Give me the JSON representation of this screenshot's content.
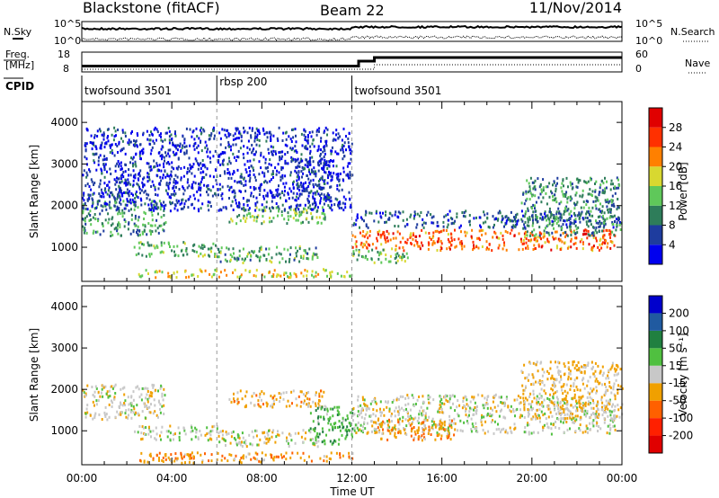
{
  "header": {
    "station": "Blackstone (fitACF)",
    "beam": "Beam 22",
    "date": "11/Nov/2014"
  },
  "top_panel": {
    "nsky_label": "N.Sky",
    "nsearch_label": "N.Search",
    "freq_label_1": "Freq.",
    "freq_label_2": "[MHz]",
    "nave_label": "Nave",
    "cpid_label": "CPID",
    "noise_ticks": [
      "10^5",
      "10^0"
    ],
    "freq_ticks": [
      "18",
      "8"
    ],
    "nave_ticks": [
      "60",
      "0"
    ],
    "cpid_segments": [
      {
        "label": "twofsound 3501",
        "start_hour": 0,
        "end_hour": 6
      },
      {
        "label": "rbsp 200",
        "start_hour": 6,
        "end_hour": 12
      },
      {
        "label": "twofsound 3501",
        "start_hour": 12,
        "end_hour": 24
      }
    ]
  },
  "chart_data": [
    {
      "type": "heatmap",
      "title": "",
      "xlabel": "Time UT",
      "ylabel": "Slant Range [km]",
      "xlim": [
        0,
        24
      ],
      "ylim": [
        180,
        4500
      ],
      "x_tick_labels": [
        "00:00",
        "04:00",
        "08:00",
        "12:00",
        "16:00",
        "20:00",
        "00:00"
      ],
      "x_ticks": [
        0,
        4,
        8,
        12,
        16,
        20,
        24
      ],
      "y_ticks": [
        1000,
        2000,
        3000,
        4000
      ],
      "colorbar": {
        "label": "Power [dB]",
        "ticks": [
          4,
          8,
          12,
          16,
          20,
          24,
          28
        ],
        "range": [
          0,
          32
        ],
        "colors": [
          "#0000ee",
          "#1e3c9e",
          "#2e7d5a",
          "#5fc85a",
          "#d8d830",
          "#ff8000",
          "#ff3000",
          "#e00000"
        ]
      },
      "regions": [
        {
          "t0": 0.0,
          "t1": 3.7,
          "r0": 1300,
          "r1": 2150,
          "level": 11
        },
        {
          "t0": 1.0,
          "t1": 2.5,
          "r0": 2200,
          "r1": 2550,
          "level": 6
        },
        {
          "t0": 2.3,
          "t1": 6.0,
          "r0": 800,
          "r1": 1150,
          "level": 13
        },
        {
          "t0": 2.5,
          "t1": 12.0,
          "r0": 300,
          "r1": 500,
          "level": 18
        },
        {
          "t0": 6.0,
          "t1": 10.5,
          "r0": 650,
          "r1": 1050,
          "level": 12
        },
        {
          "t0": 6.5,
          "t1": 10.8,
          "r0": 1600,
          "r1": 2000,
          "level": 14
        },
        {
          "t0": 9.5,
          "t1": 11.0,
          "r0": 1900,
          "r1": 3200,
          "level": 5
        },
        {
          "t0": 12.0,
          "t1": 23.7,
          "r0": 950,
          "r1": 1450,
          "level": 24
        },
        {
          "t0": 12.0,
          "t1": 23.9,
          "r0": 1500,
          "r1": 1900,
          "level": 7
        },
        {
          "t0": 12.0,
          "t1": 14.5,
          "r0": 650,
          "r1": 1000,
          "level": 14
        },
        {
          "t0": 19.5,
          "t1": 24.0,
          "r0": 1300,
          "r1": 2700,
          "level": 10
        },
        {
          "t0": 0.0,
          "t1": 12.0,
          "r0": 1900,
          "r1": 3900,
          "level": 4
        }
      ]
    },
    {
      "type": "heatmap",
      "title": "",
      "xlabel": "Time UT",
      "ylabel": "Slant Range [km]",
      "xlim": [
        0,
        24
      ],
      "ylim": [
        180,
        4500
      ],
      "x_tick_labels": [
        "00:00",
        "04:00",
        "08:00",
        "12:00",
        "16:00",
        "20:00",
        "00:00"
      ],
      "x_ticks": [
        0,
        4,
        8,
        12,
        16,
        20,
        24
      ],
      "y_ticks": [
        1000,
        2000,
        3000,
        4000
      ],
      "colorbar": {
        "label": "Velocity [m s⁻¹]",
        "unit_superscript": "-1",
        "ticks": [
          200,
          100,
          50,
          15,
          -15,
          -50,
          -100,
          -200
        ],
        "colors": [
          "#0000cc",
          "#205aa0",
          "#208040",
          "#50c040",
          "#c8c8c8",
          "#f0a000",
          "#ff6000",
          "#ff2000",
          "#e00000"
        ]
      },
      "regions": [
        {
          "t0": 0.0,
          "t1": 3.7,
          "r0": 1300,
          "r1": 2150,
          "value": 0
        },
        {
          "t0": 2.3,
          "t1": 6.0,
          "r0": 800,
          "r1": 1150,
          "value": 0
        },
        {
          "t0": 2.5,
          "t1": 12.0,
          "r0": 250,
          "r1": 500,
          "value": -40
        },
        {
          "t0": 6.0,
          "t1": 10.5,
          "r0": 650,
          "r1": 1050,
          "value": 0
        },
        {
          "t0": 6.5,
          "t1": 10.8,
          "r0": 1600,
          "r1": 2000,
          "value": -30
        },
        {
          "t0": 10.0,
          "t1": 12.0,
          "r0": 700,
          "r1": 1600,
          "value": 40
        },
        {
          "t0": 12.0,
          "t1": 23.7,
          "r0": 950,
          "r1": 1900,
          "value": 0
        },
        {
          "t0": 13.0,
          "t1": 16.5,
          "r0": 800,
          "r1": 1300,
          "value": -40
        },
        {
          "t0": 19.5,
          "t1": 24.0,
          "r0": 1300,
          "r1": 2700,
          "value": -20
        }
      ]
    }
  ]
}
